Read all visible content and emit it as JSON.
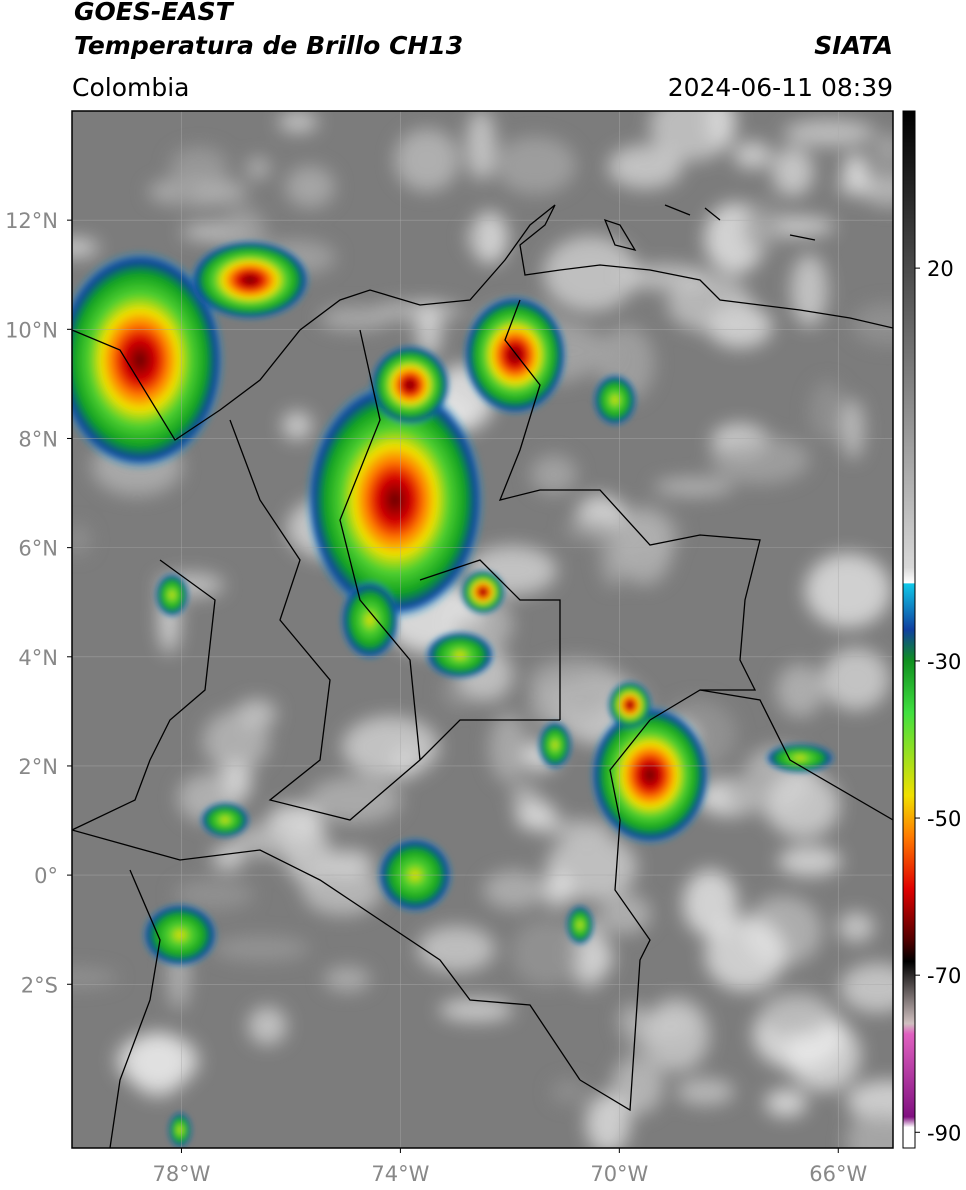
{
  "header": {
    "title": "GOES-EAST",
    "subtitle": "Temperatura de Brillo CH13",
    "region": "Colombia",
    "source": "SIATA",
    "timestamp": "2024-06-11 08:39"
  },
  "map": {
    "xlim": [
      -80,
      -65
    ],
    "ylim": [
      -5,
      14
    ],
    "xticks": [
      {
        "value": -78,
        "label": "78°W"
      },
      {
        "value": -74,
        "label": "74°W"
      },
      {
        "value": -70,
        "label": "70°W"
      },
      {
        "value": -66,
        "label": "66°W"
      }
    ],
    "yticks": [
      {
        "value": 12,
        "label": "12°N"
      },
      {
        "value": 10,
        "label": "10°N"
      },
      {
        "value": 8,
        "label": "8°N"
      },
      {
        "value": 6,
        "label": "6°N"
      },
      {
        "value": 4,
        "label": "4°N"
      },
      {
        "value": 2,
        "label": "2°N"
      },
      {
        "value": 0,
        "label": "0°"
      },
      {
        "value": -2,
        "label": "2°S"
      }
    ],
    "grid": true
  },
  "colorbar": {
    "ylim": [
      -92,
      40
    ],
    "yticks": [
      20,
      -30,
      -50,
      -70,
      -90
    ]
  }
}
